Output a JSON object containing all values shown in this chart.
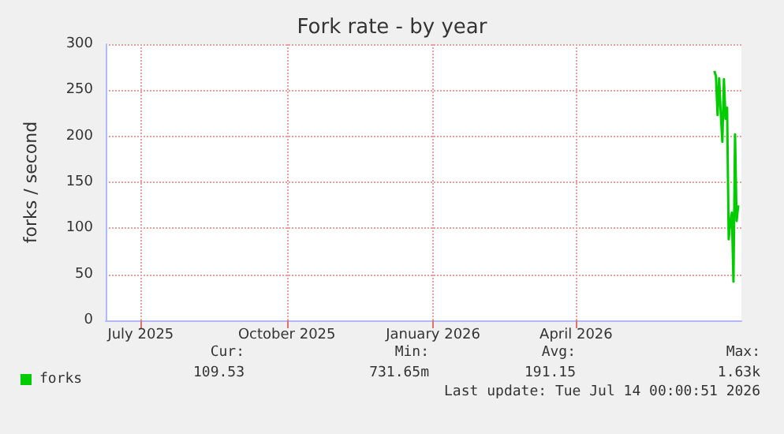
{
  "chart_data": {
    "type": "line",
    "title": "Fork rate - by year",
    "ylabel": "forks / second",
    "x": [
      "2026-06-27",
      "2026-06-28",
      "2026-06-29",
      "2026-06-30",
      "2026-07-01",
      "2026-07-02",
      "2026-07-03",
      "2026-07-04",
      "2026-07-05",
      "2026-07-06",
      "2026-07-07",
      "2026-07-08",
      "2026-07-09",
      "2026-07-10",
      "2026-07-11",
      "2026-07-12"
    ],
    "series": [
      {
        "name": "forks",
        "color": "#00cc00",
        "values": [
          271,
          265,
          223,
          263,
          225,
          194,
          262,
          219,
          231,
          88,
          108,
          117,
          42,
          202,
          108,
          125
        ]
      }
    ],
    "xlim": [
      "2025-06-09",
      "2026-07-14"
    ],
    "xticks": [
      {
        "value": "2025-07-01",
        "label": "July 2025"
      },
      {
        "value": "2025-10-01",
        "label": "October 2025"
      },
      {
        "value": "2026-01-01",
        "label": "January 2026"
      },
      {
        "value": "2026-04-01",
        "label": "April 2026"
      }
    ],
    "ylim": [
      0,
      300
    ],
    "yticks": [
      0,
      50,
      100,
      150,
      200,
      250,
      300
    ],
    "grid": true,
    "legend": "bottom left",
    "marker": "none",
    "line_style": "solid",
    "annotations": [
      "Cur:",
      "109.53",
      "Min:",
      "731.65m",
      "Avg:",
      "191.15",
      "Max:",
      "1.63k",
      "Last update: Tue Jul 14 00:00:51 2026"
    ]
  }
}
